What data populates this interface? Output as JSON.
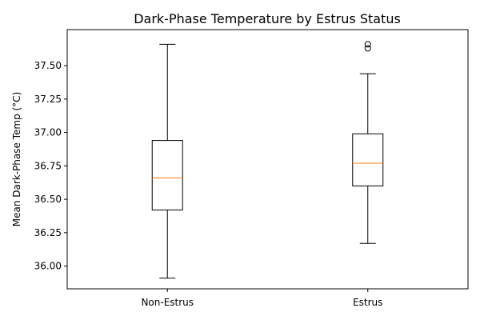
{
  "chart_data": {
    "type": "boxplot",
    "title": "Dark-Phase Temperature by Estrus Status",
    "xlabel": "",
    "ylabel": "Mean Dark-Phase Temp (°C)",
    "categories": [
      "Non-Estrus",
      "Estrus"
    ],
    "ylim": [
      35.83,
      37.77
    ],
    "yticks": [
      36.0,
      36.25,
      36.5,
      36.75,
      37.0,
      37.25,
      37.5
    ],
    "yticklabels": [
      "36.00",
      "36.25",
      "36.50",
      "36.75",
      "37.00",
      "37.25",
      "37.50"
    ],
    "grid": false,
    "boxes": [
      {
        "category": "Non-Estrus",
        "whisker_low": 35.91,
        "q1": 36.42,
        "median": 36.66,
        "q3": 36.94,
        "whisker_high": 37.66,
        "outliers": []
      },
      {
        "category": "Estrus",
        "whisker_low": 36.17,
        "q1": 36.6,
        "median": 36.77,
        "q3": 36.99,
        "whisker_high": 37.44,
        "outliers": [
          37.63,
          37.66
        ]
      }
    ],
    "colors": {
      "box": "#000000",
      "median": "#ff7f0e",
      "outlier": "#000000"
    }
  }
}
